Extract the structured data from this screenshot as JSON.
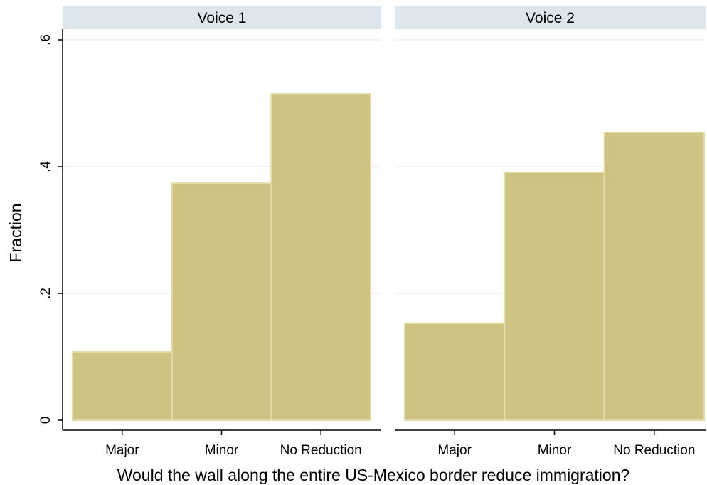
{
  "chart_data": {
    "type": "bar",
    "xlabel": "Would the wall along the entire US-Mexico border reduce immigration?",
    "ylabel": "Fraction",
    "ylim": [
      0,
      0.62
    ],
    "yticks": [
      {
        "value": 0,
        "label": "0"
      },
      {
        "value": 0.2,
        "label": ".2"
      },
      {
        "value": 0.4,
        "label": ".4"
      },
      {
        "value": 0.6,
        "label": ".6"
      }
    ],
    "grid": true,
    "categories": [
      "Major",
      "Minor",
      "No Reduction"
    ],
    "panels": [
      {
        "title": "Voice 1",
        "values": [
          0.108,
          0.374,
          0.515
        ]
      },
      {
        "title": "Voice 2",
        "values": [
          0.153,
          0.391,
          0.454
        ]
      }
    ],
    "colors": {
      "bar_fill": "#cdc382",
      "bar_stroke": "#e3dca8",
      "panel_header": "#dce6ec",
      "grid": "#eaf0f2",
      "axis": "#000000"
    }
  }
}
